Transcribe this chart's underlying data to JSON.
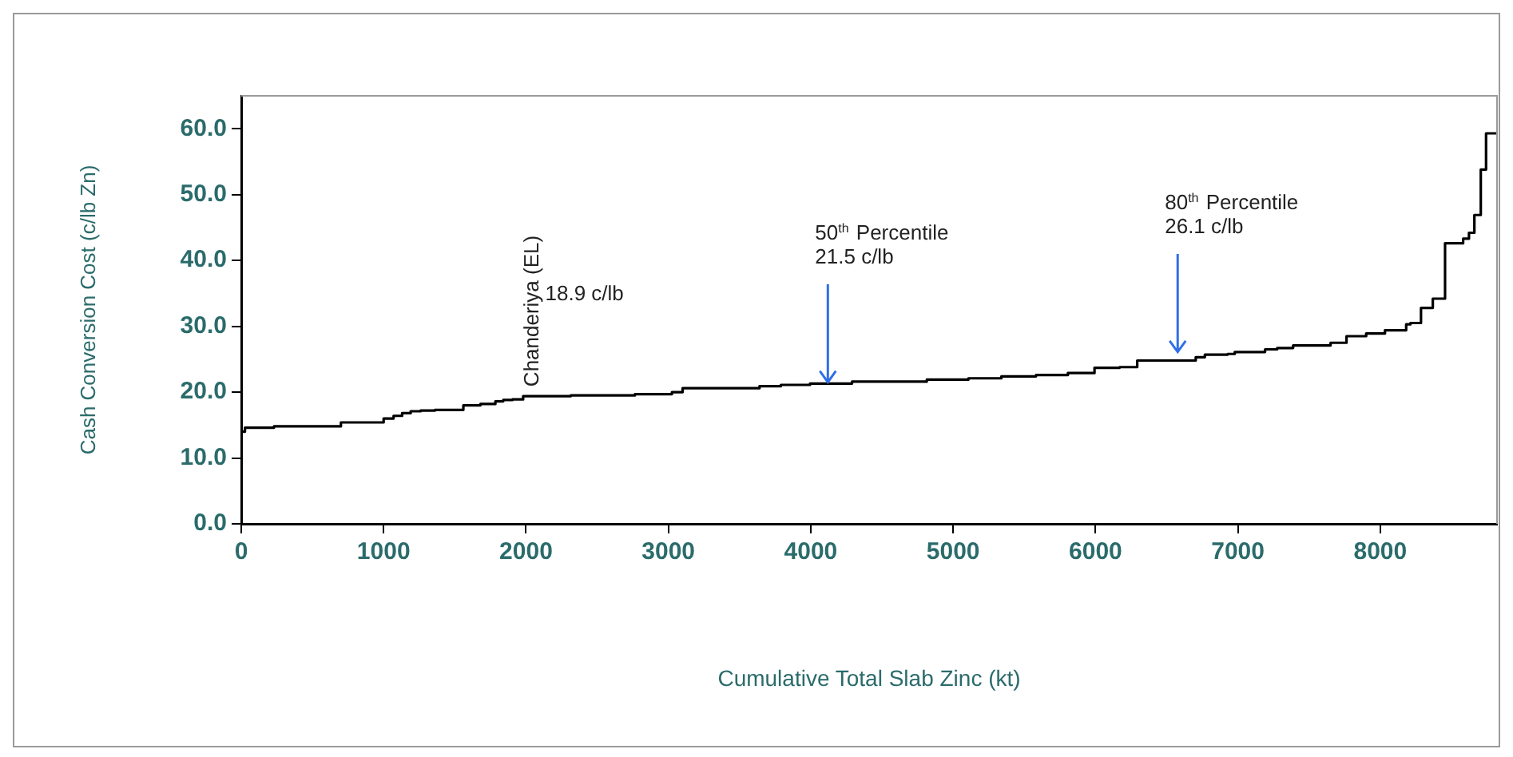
{
  "chart_data": {
    "type": "step",
    "xlabel": "Cumulative Total Slab Zinc (kt)",
    "ylabel": "Cash Conversion Cost (c/lb Zn)",
    "x": [
      0,
      26,
      130,
      230,
      700,
      1000,
      1070,
      1130,
      1190,
      1260,
      1360,
      1560,
      1680,
      1785,
      1840,
      1905,
      1980,
      2110,
      2315,
      2765,
      2800,
      3025,
      3100,
      3435,
      3640,
      3700,
      3790,
      3995,
      4070,
      4290,
      4583,
      4702,
      4815,
      5047,
      5107,
      5170,
      5339,
      5582,
      5806,
      5993,
      6050,
      6169,
      6293,
      6468,
      6704,
      6768,
      6928,
      6978,
      7191,
      7276,
      7388,
      7651,
      7763,
      7901,
      8033,
      8182,
      8212,
      8286,
      8369,
      8455,
      8582,
      8623,
      8661,
      8706,
      8743,
      8780
    ],
    "values": [
      13.3,
      14.0,
      14.6,
      14.6,
      14.8,
      15.4,
      16.0,
      16.4,
      16.8,
      17.1,
      17.2,
      17.3,
      18.0,
      18.2,
      18.6,
      18.8,
      18.9,
      19.4,
      19.4,
      19.5,
      19.7,
      19.7,
      20.0,
      20.6,
      20.6,
      20.9,
      20.9,
      21.1,
      21.3,
      21.3,
      21.6,
      21.6,
      21.6,
      21.9,
      21.9,
      22.1,
      22.1,
      22.4,
      22.6,
      22.9,
      23.7,
      23.7,
      23.8,
      24.8,
      24.8,
      25.3,
      25.7,
      25.8,
      26.1,
      26.5,
      26.7,
      27.1,
      27.5,
      28.5,
      28.9,
      29.4,
      30.3,
      30.5,
      32.8,
      34.2,
      42.6,
      43.3,
      44.2,
      46.9,
      53.8,
      59.3
    ],
    "color": "#000000",
    "xlim": [
      0,
      8820
    ],
    "xticks": [
      0,
      1000,
      2000,
      3000,
      4000,
      5000,
      6000,
      7000,
      8000
    ],
    "ylim": [
      0,
      65
    ],
    "yticks": [
      {
        "value": 0,
        "label": "0.0"
      },
      {
        "value": 10,
        "label": "10.0"
      },
      {
        "value": 20,
        "label": "20.0"
      },
      {
        "value": 30,
        "label": "30.0"
      },
      {
        "value": 40,
        "label": "40.0"
      },
      {
        "value": 50,
        "label": "50.0"
      },
      {
        "value": 60,
        "label": "60.0"
      }
    ],
    "grid": false,
    "legend": false,
    "annotations": [
      {
        "text": "Chanderiya (EL)",
        "x": 2045,
        "y": 18.9
      },
      "18.9 c/lb",
      {
        "text": "50$^{th}$ Percentile\n21.5 c/lb",
        "x": 4120,
        "y": 21.5
      },
      {
        "text": "80$^{th}$ Percentile\n26.1 c/lb",
        "x": 6577,
        "y": 26.1
      }
    ]
  }
}
